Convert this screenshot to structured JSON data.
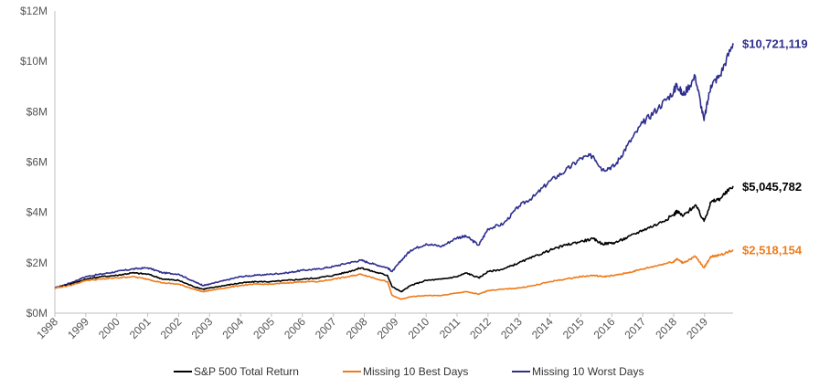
{
  "chart_data": {
    "type": "line",
    "title": "",
    "xlabel": "",
    "ylabel": "",
    "ylim": [
      0,
      12000000
    ],
    "xlim": [
      1998,
      2019.92
    ],
    "grid": false,
    "legend_position": "bottom",
    "y_ticks": [
      {
        "value": 0,
        "label": "$0M"
      },
      {
        "value": 2000000,
        "label": "$2M"
      },
      {
        "value": 4000000,
        "label": "$4M"
      },
      {
        "value": 6000000,
        "label": "$6M"
      },
      {
        "value": 8000000,
        "label": "$8M"
      },
      {
        "value": 10000000,
        "label": "$10M"
      },
      {
        "value": 12000000,
        "label": "$12M"
      }
    ],
    "x_ticks": [
      "1998",
      "1999",
      "2000",
      "2001",
      "2002",
      "2003",
      "2004",
      "2005",
      "2006",
      "2007",
      "2008",
      "2009",
      "2010",
      "2011",
      "2012",
      "2013",
      "2014",
      "2015",
      "2016",
      "2017",
      "2018",
      "2019"
    ],
    "series": [
      {
        "name": "Missing 10 Worst Days",
        "color": "#2e2e8f",
        "end_label": "$10,721,119",
        "x": [
          1998.0,
          1998.5,
          1999.0,
          1999.5,
          2000.0,
          2000.5,
          2001.0,
          2001.5,
          2002.0,
          2002.5,
          2002.8,
          2003.0,
          2003.5,
          2004.0,
          2004.5,
          2005.0,
          2005.5,
          2006.0,
          2006.5,
          2007.0,
          2007.5,
          2007.9,
          2008.3,
          2008.75,
          2008.9,
          2009.2,
          2009.5,
          2010.0,
          2010.5,
          2011.0,
          2011.3,
          2011.7,
          2012.0,
          2012.5,
          2013.0,
          2013.5,
          2014.0,
          2014.5,
          2015.0,
          2015.4,
          2015.7,
          2016.1,
          2016.5,
          2017.0,
          2017.5,
          2018.0,
          2018.1,
          2018.3,
          2018.7,
          2018.98,
          2019.2,
          2019.5,
          2019.92
        ],
        "values": [
          1000000,
          1200000,
          1450000,
          1550000,
          1650000,
          1750000,
          1800000,
          1600000,
          1550000,
          1250000,
          1100000,
          1150000,
          1300000,
          1450000,
          1500000,
          1550000,
          1600000,
          1700000,
          1750000,
          1850000,
          2000000,
          2100000,
          1950000,
          1800000,
          1650000,
          2100000,
          2500000,
          2750000,
          2650000,
          3000000,
          3050000,
          2700000,
          3350000,
          3550000,
          4250000,
          4650000,
          5250000,
          5650000,
          6150000,
          6250000,
          5700000,
          5850000,
          6650000,
          7550000,
          8150000,
          8800000,
          9100000,
          8650000,
          9400000,
          7650000,
          9050000,
          9450000,
          10721119
        ]
      },
      {
        "name": "S&P 500 Total Return",
        "color": "#000000",
        "end_label": "$5,045,782",
        "x": [
          1998.0,
          1998.5,
          1999.0,
          1999.5,
          2000.0,
          2000.5,
          2001.0,
          2001.5,
          2002.0,
          2002.5,
          2002.8,
          2003.0,
          2003.5,
          2004.0,
          2004.5,
          2005.0,
          2005.5,
          2006.0,
          2006.5,
          2007.0,
          2007.5,
          2007.9,
          2008.3,
          2008.75,
          2008.9,
          2009.2,
          2009.5,
          2010.0,
          2010.5,
          2011.0,
          2011.3,
          2011.7,
          2012.0,
          2012.5,
          2013.0,
          2013.5,
          2014.0,
          2014.5,
          2015.0,
          2015.4,
          2015.7,
          2016.1,
          2016.5,
          2017.0,
          2017.5,
          2018.0,
          2018.1,
          2018.3,
          2018.7,
          2018.98,
          2019.2,
          2019.5,
          2019.92
        ],
        "values": [
          1000000,
          1150000,
          1350000,
          1450000,
          1500000,
          1600000,
          1550000,
          1350000,
          1300000,
          1050000,
          950000,
          1000000,
          1100000,
          1200000,
          1250000,
          1250000,
          1300000,
          1350000,
          1400000,
          1500000,
          1650000,
          1800000,
          1650000,
          1500000,
          1050000,
          850000,
          1100000,
          1300000,
          1350000,
          1450000,
          1600000,
          1400000,
          1650000,
          1750000,
          2000000,
          2250000,
          2500000,
          2700000,
          2850000,
          2950000,
          2750000,
          2800000,
          3000000,
          3300000,
          3550000,
          3900000,
          4050000,
          3850000,
          4300000,
          3650000,
          4400000,
          4550000,
          5045782
        ]
      },
      {
        "name": "Missing 10 Best Days",
        "color": "#f07b1a",
        "end_label": "$2,518,154",
        "x": [
          1998.0,
          1998.5,
          1999.0,
          1999.5,
          2000.0,
          2000.5,
          2001.0,
          2001.5,
          2002.0,
          2002.5,
          2002.8,
          2003.0,
          2003.5,
          2004.0,
          2004.5,
          2005.0,
          2005.5,
          2006.0,
          2006.5,
          2007.0,
          2007.5,
          2007.9,
          2008.3,
          2008.75,
          2008.9,
          2009.2,
          2009.5,
          2010.0,
          2010.5,
          2011.0,
          2011.3,
          2011.7,
          2012.0,
          2012.5,
          2013.0,
          2013.5,
          2014.0,
          2014.5,
          2015.0,
          2015.4,
          2015.7,
          2016.1,
          2016.5,
          2017.0,
          2017.5,
          2018.0,
          2018.1,
          2018.3,
          2018.7,
          2018.98,
          2019.2,
          2019.5,
          2019.92
        ],
        "values": [
          1000000,
          1100000,
          1300000,
          1350000,
          1400000,
          1450000,
          1350000,
          1200000,
          1150000,
          950000,
          850000,
          900000,
          1000000,
          1100000,
          1150000,
          1150000,
          1200000,
          1250000,
          1250000,
          1350000,
          1450000,
          1550000,
          1400000,
          1250000,
          700000,
          550000,
          650000,
          700000,
          700000,
          800000,
          850000,
          750000,
          900000,
          950000,
          1000000,
          1100000,
          1250000,
          1350000,
          1450000,
          1500000,
          1450000,
          1500000,
          1600000,
          1750000,
          1900000,
          2050000,
          2150000,
          2000000,
          2250000,
          1800000,
          2250000,
          2300000,
          2518154
        ]
      }
    ],
    "legend": [
      {
        "label": "S&P 500 Total Return",
        "color": "#000000"
      },
      {
        "label": "Missing 10 Best Days",
        "color": "#f07b1a"
      },
      {
        "label": "Missing 10 Worst Days",
        "color": "#2e2e8f"
      }
    ]
  }
}
